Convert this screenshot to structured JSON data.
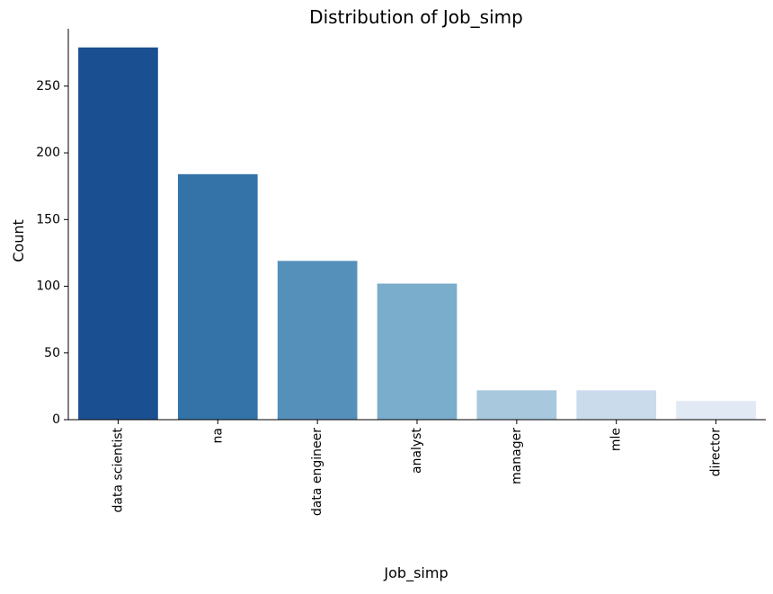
{
  "chart_data": {
    "type": "bar",
    "title": "Distribution of Job_simp",
    "xlabel": "Job_simp",
    "ylabel": "Count",
    "categories": [
      "data scientist",
      "na",
      "data engineer",
      "analyst",
      "manager",
      "mle",
      "director"
    ],
    "values": [
      279,
      184,
      119,
      102,
      22,
      22,
      14
    ],
    "colors": [
      "#1a5092",
      "#3373a8",
      "#5590ba",
      "#7aaccb",
      "#a8c8dd",
      "#cadcec",
      "#e1e9f4"
    ],
    "ylim": [
      0,
      293
    ],
    "yticks": [
      0,
      50,
      100,
      150,
      200,
      250
    ],
    "grid": false,
    "legend": "none"
  }
}
